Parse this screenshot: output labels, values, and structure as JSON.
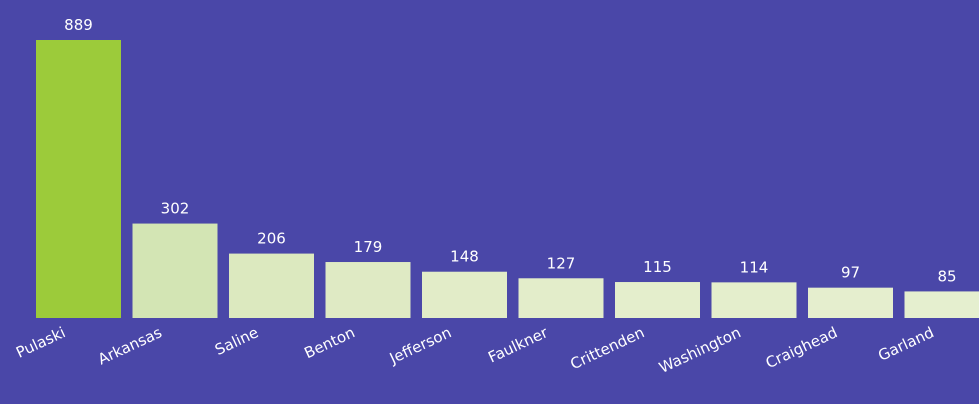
{
  "chart_data": {
    "type": "bar",
    "categories": [
      "Pulaski",
      "Arkansas",
      "Saline",
      "Benton",
      "Jefferson",
      "Faulkner",
      "Crittenden",
      "Washington",
      "Craighead",
      "Garland"
    ],
    "values": [
      889,
      302,
      206,
      179,
      148,
      127,
      115,
      114,
      97,
      85
    ],
    "colors": [
      "#9ccb3a",
      "#d3e5b4",
      "#dce9bf",
      "#dfeac4",
      "#e2ecc8",
      "#e3edca",
      "#e4eecc",
      "#e4eecc",
      "#e5eece",
      "#e5efcf"
    ],
    "grid": false
  }
}
